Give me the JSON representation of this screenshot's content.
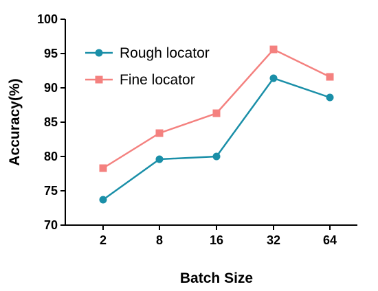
{
  "chart_data": {
    "type": "line",
    "categories": [
      "2",
      "8",
      "16",
      "32",
      "64"
    ],
    "series": [
      {
        "name": "Rough locator",
        "values": [
          73.7,
          79.6,
          80.0,
          91.4,
          88.6
        ],
        "color": "#1a8fa8",
        "marker": "circle"
      },
      {
        "name": "Fine locator",
        "values": [
          78.3,
          83.4,
          86.3,
          95.6,
          91.6
        ],
        "color": "#f4817f",
        "marker": "square"
      }
    ],
    "xlabel": "Batch Size",
    "ylabel": "Accuracy(%)",
    "ylim": [
      70,
      100
    ],
    "yticks": [
      "70",
      "75",
      "80",
      "85",
      "90",
      "95",
      "100"
    ],
    "grid": false,
    "legend_position": "top-left"
  }
}
